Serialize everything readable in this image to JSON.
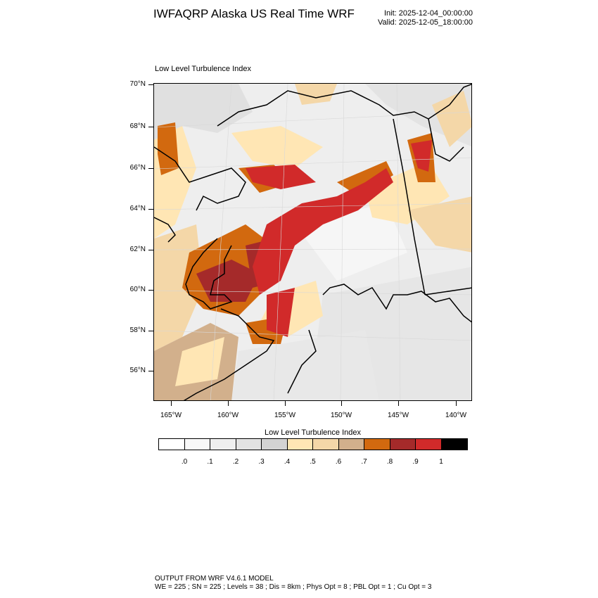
{
  "header": {
    "title": "IWFAQRP Alaska US Real Time WRF",
    "init": "Init: 2025-12-04_00:00:00",
    "valid": "Valid: 2025-12-05_18:00:00"
  },
  "map": {
    "subtitle": "Low Level Turbulence Index",
    "lat_labels": [
      "70°N",
      "68°N",
      "66°N",
      "64°N",
      "62°N",
      "60°N",
      "58°N",
      "56°N"
    ],
    "lon_labels": [
      "165°W",
      "160°W",
      "155°W",
      "150°W",
      "145°W",
      "140°W"
    ]
  },
  "colorbar": {
    "title": "Low Level Turbulence Index",
    "colors": [
      "#ffffff",
      "#f8f8f8",
      "#efefef",
      "#e3e3e3",
      "#d3d3d3",
      "#ffe6b4",
      "#f4d7a8",
      "#d2b08c",
      "#d2690f",
      "#a52a2a",
      "#d12a2a",
      "#000000"
    ],
    "labels": [
      ".0",
      ".1",
      ".2",
      ".3",
      ".4",
      ".5",
      ".6",
      ".7",
      ".8",
      ".9",
      "1"
    ]
  },
  "footer": {
    "line1": "OUTPUT FROM WRF V4.6.1 MODEL",
    "line2": "WE = 225 ; SN = 225 ; Levels = 38 ; Dis = 8km ; Phys Opt = 8 ; PBL Opt = 1 ; Cu Opt = 3"
  }
}
